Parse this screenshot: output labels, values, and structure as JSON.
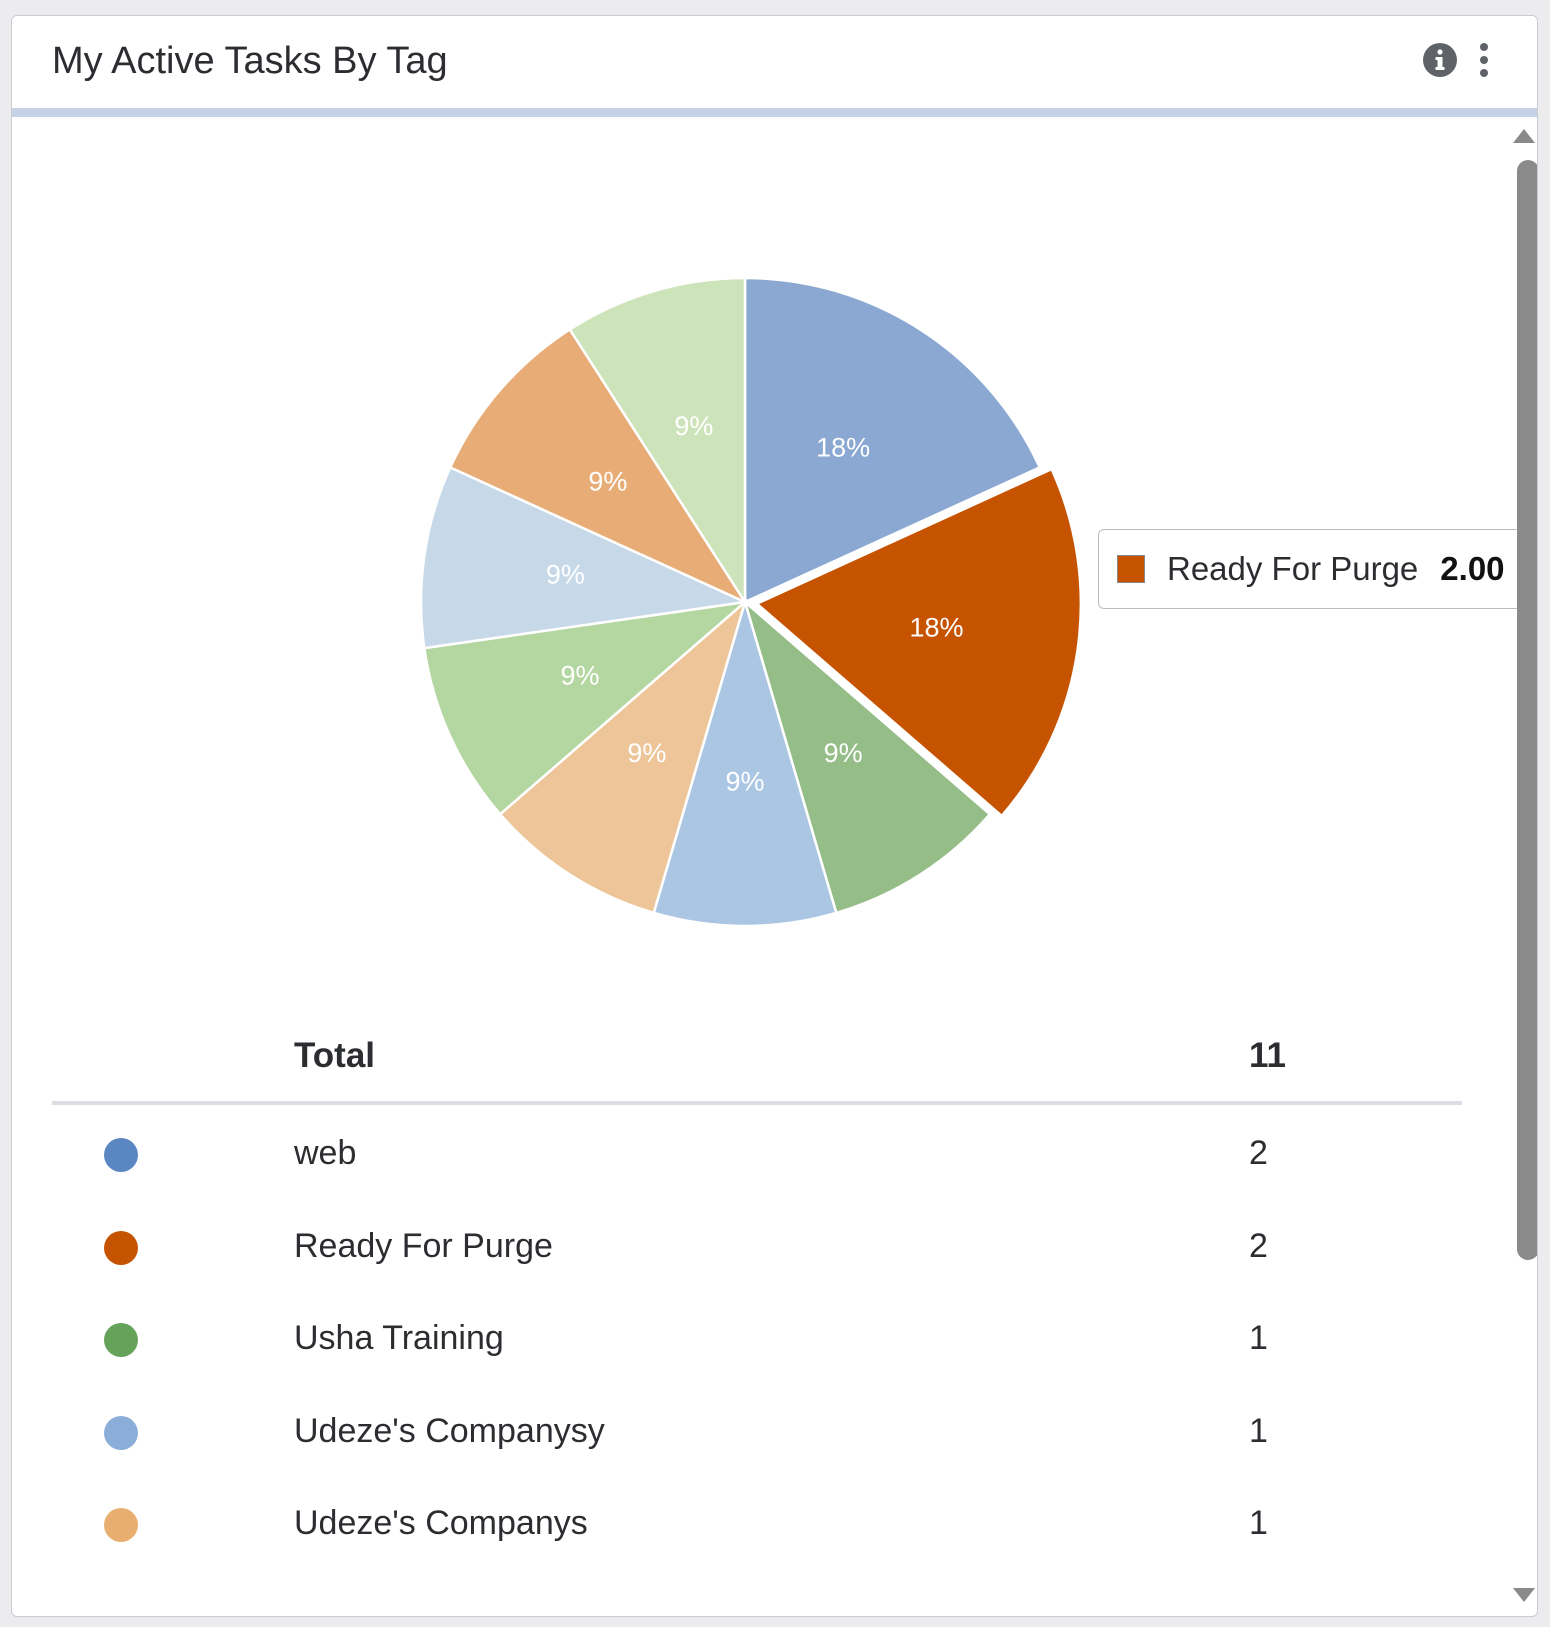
{
  "widget": {
    "title": "My Active Tasks By Tag",
    "info_icon": "info-circle-icon",
    "menu_icon": "more-vertical-icon"
  },
  "chart_data": {
    "type": "pie",
    "total": 11,
    "slices": [
      {
        "label": "web",
        "value": 2,
        "percent_label": "18%",
        "color": "#8aa8d2",
        "legend_color": "#5a86c2"
      },
      {
        "label": "Ready For Purge",
        "value": 2,
        "percent_label": "18%",
        "color": "#c55300",
        "legend_color": "#c55300"
      },
      {
        "label": "Usha Training",
        "value": 1,
        "percent_label": "9%",
        "color": "#94bd87",
        "legend_color": "#66a35a"
      },
      {
        "label": "Udeze's Companysy",
        "value": 1,
        "percent_label": "9%",
        "color": "#abc6e3",
        "legend_color": "#8aaed8"
      },
      {
        "label": "Udeze's Companys",
        "value": 1,
        "percent_label": "9%",
        "color": "#edc599",
        "legend_color": "#e8ae6f"
      },
      {
        "label": "",
        "value": 1,
        "percent_label": "9%",
        "color": "#b4d6a1"
      },
      {
        "label": "",
        "value": 1,
        "percent_label": "9%",
        "color": "#c7d9e9"
      },
      {
        "label": "",
        "value": 1,
        "percent_label": "9%",
        "color": "#e8ad77"
      },
      {
        "label": "",
        "value": 1,
        "percent_label": "9%",
        "color": "#cde3b9"
      }
    ],
    "highlighted_slice": 1
  },
  "tooltip": {
    "label": "Ready For Purge",
    "value": "2.00",
    "color": "#c55300"
  },
  "table": {
    "total_label": "Total",
    "total_value": "11",
    "rows": [
      {
        "label": "web",
        "value": "2",
        "color": "#5a86c2"
      },
      {
        "label": "Ready For Purge",
        "value": "2",
        "color": "#c55300"
      },
      {
        "label": "Usha Training",
        "value": "1",
        "color": "#66a35a"
      },
      {
        "label": "Udeze's Companysy",
        "value": "1",
        "color": "#8aaed8"
      },
      {
        "label": "Udeze's Companys",
        "value": "1",
        "color": "#e8ae6f"
      }
    ]
  }
}
